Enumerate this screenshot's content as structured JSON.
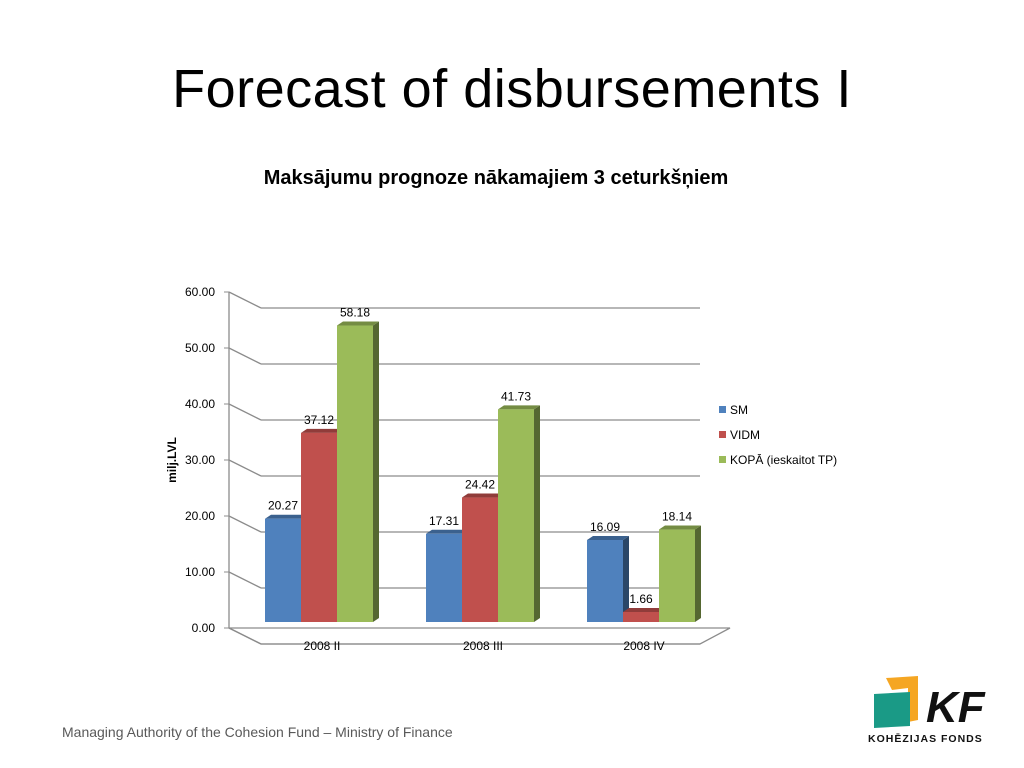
{
  "slide": {
    "title": "Forecast of disbursements I",
    "footer": "Managing Authority of the Cohesion Fund – Ministry of Finance"
  },
  "logo": {
    "mark": "KF",
    "caption": "KOHĒZIJAS FONDS",
    "colors": {
      "orange": "#f5a623",
      "teal": "#1a9a86",
      "text": "#111111"
    }
  },
  "chart_data": {
    "type": "bar",
    "style": "3d-clustered",
    "title": "Maksājumu prognoze nākamajiem 3 ceturkšņiem",
    "xlabel": "",
    "ylabel": "milj.LVL",
    "ylim": [
      0,
      60
    ],
    "ytick_step": 10,
    "ytick_labels": [
      "0.00",
      "10.00",
      "20.00",
      "30.00",
      "40.00",
      "50.00",
      "60.00"
    ],
    "grid": true,
    "legend_position": "right",
    "categories": [
      "2008 II",
      "2008 III",
      "2008 IV"
    ],
    "series": [
      {
        "name": "SM",
        "color": "#4f81bd",
        "values": [
          20.27,
          17.31,
          16.09
        ],
        "labels": [
          "20.27",
          "17.31",
          "16.09"
        ]
      },
      {
        "name": "VIDM",
        "color": "#c0504d",
        "values": [
          37.12,
          24.42,
          1.66
        ],
        "labels": [
          "37.12",
          "24.42",
          "1.66"
        ]
      },
      {
        "name": "KOPĀ (ieskaitot TP)",
        "color": "#9bbb59",
        "values": [
          58.18,
          41.73,
          18.14
        ],
        "labels": [
          "58.18",
          "41.73",
          "18.14"
        ]
      }
    ]
  }
}
